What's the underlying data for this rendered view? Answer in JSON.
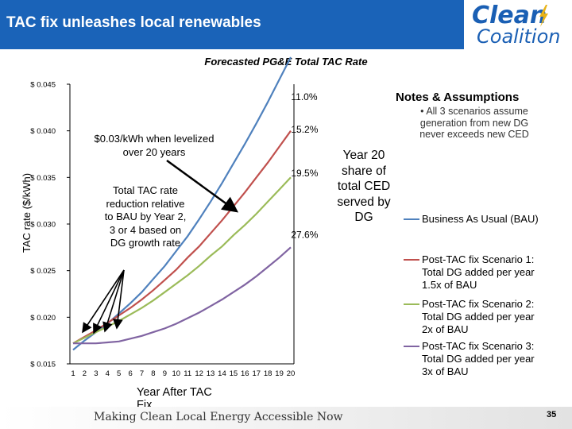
{
  "header": {
    "title": "TAC fix unleashes local renewables"
  },
  "logo": {
    "line1": "Clean",
    "line2": "Coalition",
    "accent_color": "#e8b318"
  },
  "notes": {
    "title": "Notes & Assumptions",
    "bullet": "• All 3 scenarios assume generation from new DG never exceeds new CED"
  },
  "annotations": {
    "year20": "Year 20 share of total CED served by DG",
    "levelized": "$0.03/kWh when levelized over 20 years",
    "reduction": "Total TAC rate reduction relative to BAU by Year 2, 3 or 4 based on DG growth rate"
  },
  "footer": {
    "text": "Making Clean Local Energy Accessible Now",
    "page": "35"
  },
  "chart_data": {
    "type": "line",
    "title": "Forecasted PG&E Total TAC Rate",
    "xlabel": "Year After TAC Fix",
    "ylabel": "TAC rate ($/kWh)",
    "x": [
      1,
      2,
      3,
      4,
      5,
      6,
      7,
      8,
      9,
      10,
      11,
      12,
      13,
      14,
      15,
      16,
      17,
      18,
      19,
      20
    ],
    "ylim": [
      0.015,
      0.045
    ],
    "yticks": [
      "$ 0.045",
      "$ 0.040",
      "$ 0.035",
      "$ 0.030",
      "$ 0.025",
      "$ 0.020",
      "$ 0.015"
    ],
    "ytick_values": [
      0.045,
      0.04,
      0.035,
      0.03,
      0.025,
      0.02,
      0.015
    ],
    "series": [
      {
        "name": "Business As Usual (BAU)",
        "color": "#4f81bd",
        "values": [
          0.0165,
          0.0175,
          0.0184,
          0.0193,
          0.0204,
          0.0215,
          0.0227,
          0.0241,
          0.0255,
          0.0271,
          0.0287,
          0.0305,
          0.0324,
          0.0344,
          0.0365,
          0.0386,
          0.0408,
          0.0431,
          0.0455,
          0.0479
        ]
      },
      {
        "name": "Post-TAC fix Scenario 1:  Total DG added per year 1.5x of BAU",
        "color": "#c0504d",
        "values": [
          0.0172,
          0.0179,
          0.0186,
          0.0194,
          0.0202,
          0.021,
          0.0219,
          0.0229,
          0.024,
          0.0251,
          0.0264,
          0.0276,
          0.029,
          0.0304,
          0.0319,
          0.0334,
          0.035,
          0.0366,
          0.0383,
          0.04
        ]
      },
      {
        "name": "Post-TAC fix Scenario 2:  Total DG added per year 2x of BAU",
        "color": "#9bbb59",
        "values": [
          0.0172,
          0.0178,
          0.0184,
          0.019,
          0.0196,
          0.0203,
          0.021,
          0.0218,
          0.0227,
          0.0236,
          0.0245,
          0.0255,
          0.0266,
          0.0276,
          0.0288,
          0.0299,
          0.0311,
          0.0324,
          0.0337,
          0.035
        ]
      },
      {
        "name": "Post-TAC fix Scenario 3:  Total DG added per year 3x of BAU",
        "color": "#8064a2",
        "values": [
          0.0172,
          0.0172,
          0.0172,
          0.0173,
          0.0174,
          0.0177,
          0.018,
          0.0184,
          0.0188,
          0.0193,
          0.0199,
          0.0205,
          0.0212,
          0.0219,
          0.0227,
          0.0235,
          0.0244,
          0.0254,
          0.0264,
          0.0275
        ]
      }
    ],
    "data_labels": [
      {
        "text": "11.0%",
        "x": 18.5,
        "y": 0.0433
      },
      {
        "text": "15.2%",
        "x": 18.5,
        "y": 0.0398
      },
      {
        "text": "19.5%",
        "x": 18.5,
        "y": 0.0351
      },
      {
        "text": "27.6%",
        "x": 18.5,
        "y": 0.0285
      }
    ]
  }
}
